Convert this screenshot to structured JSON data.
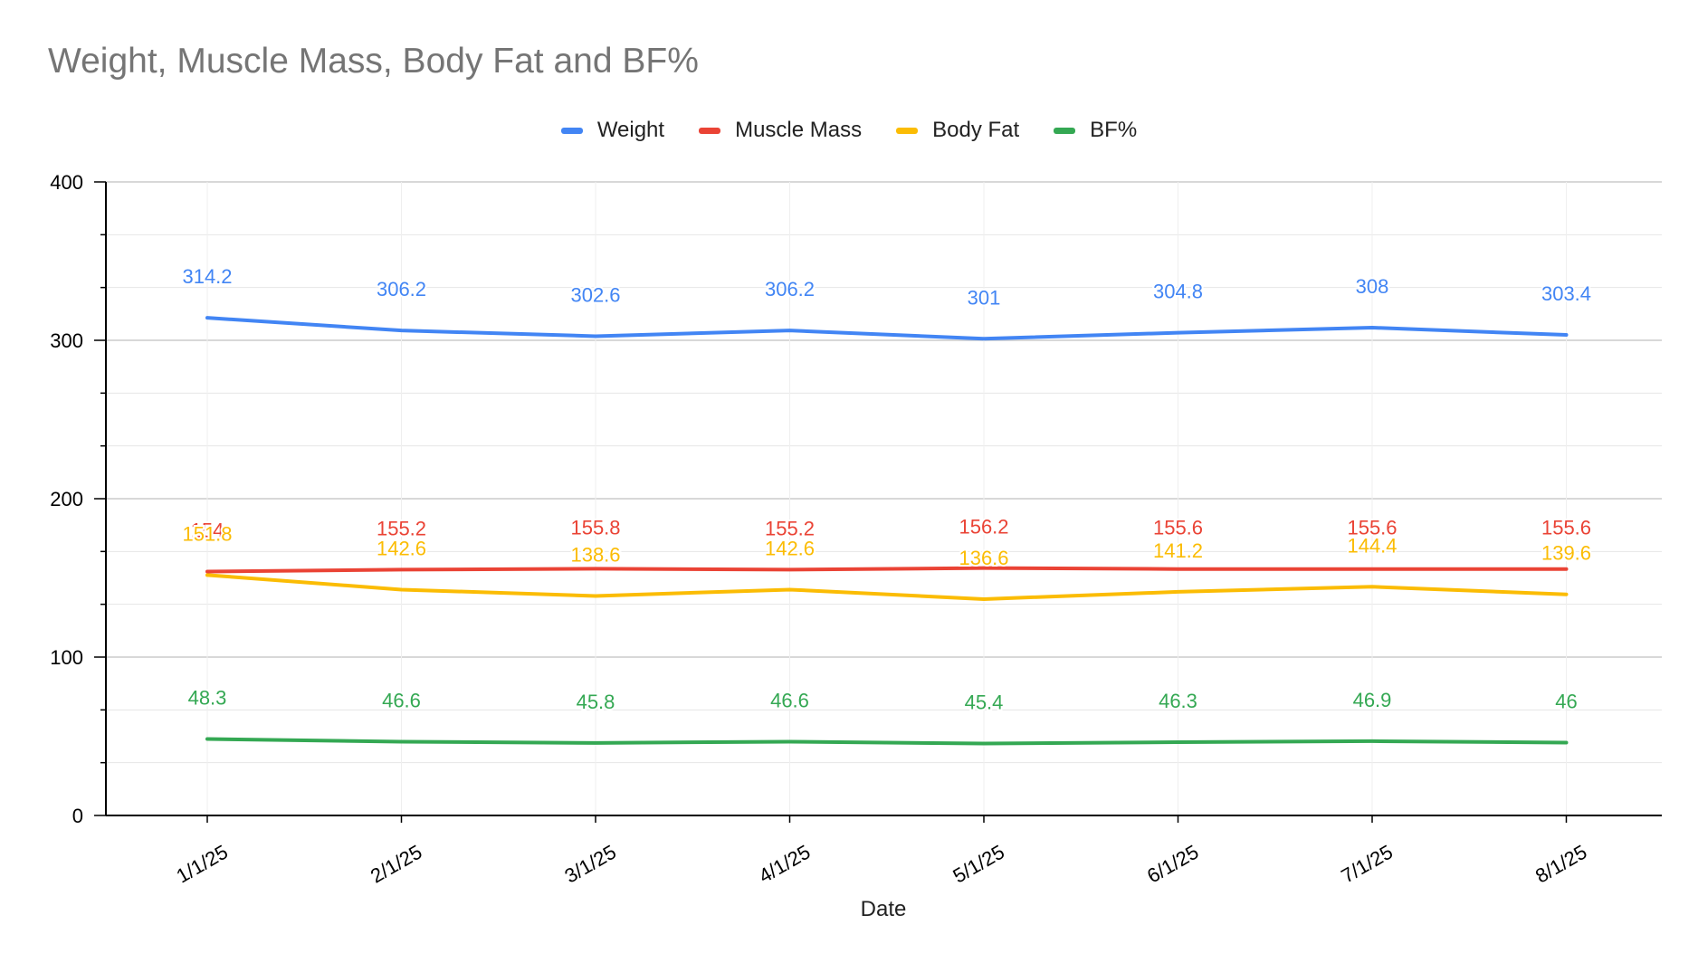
{
  "chart_data": {
    "type": "line",
    "title": "Weight, Muscle Mass, Body Fat and BF%",
    "xlabel": "Date",
    "ylabel": "",
    "categories": [
      "1/1/25",
      "2/1/25",
      "3/1/25",
      "4/1/25",
      "5/1/25",
      "6/1/25",
      "7/1/25",
      "8/1/25"
    ],
    "ylim": [
      0,
      400
    ],
    "yticks": [
      0,
      100,
      200,
      300,
      400
    ],
    "grid": true,
    "legend_position": "top",
    "series": [
      {
        "name": "Weight",
        "color": "#4285F4",
        "values": [
          314.2,
          306.2,
          302.6,
          306.2,
          301,
          304.8,
          308,
          303.4
        ]
      },
      {
        "name": "Muscle Mass",
        "color": "#EA4335",
        "values": [
          154,
          155.2,
          155.8,
          155.2,
          156.2,
          155.6,
          155.6,
          155.6
        ]
      },
      {
        "name": "Body Fat",
        "color": "#FBBC04",
        "values": [
          151.8,
          142.6,
          138.6,
          142.6,
          136.6,
          141.2,
          144.4,
          139.6
        ]
      },
      {
        "name": "BF%",
        "color": "#34A853",
        "values": [
          48.3,
          46.6,
          45.8,
          46.6,
          45.4,
          46.3,
          46.9,
          46
        ]
      }
    ]
  }
}
